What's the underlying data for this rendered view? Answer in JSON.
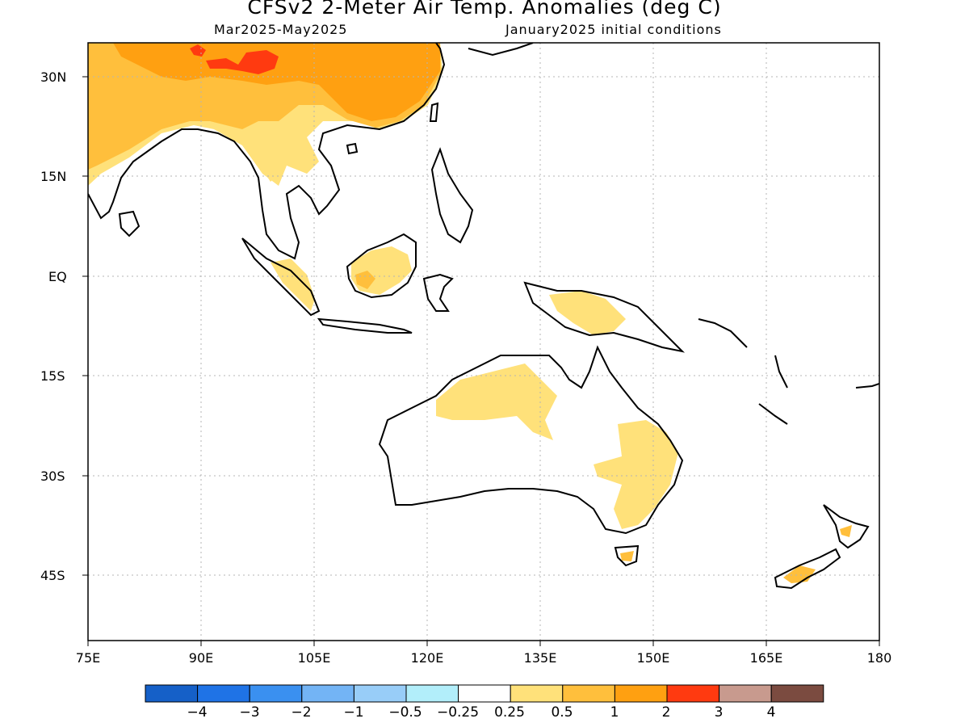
{
  "header": {
    "title": "CFSv2 2-Meter Air Temp. Anomalies (deg C)",
    "period": "Mar2025-May2025",
    "initial_conditions": "January2025 initial conditions"
  },
  "axes": {
    "y_ticks": [
      "30N",
      "15N",
      "EQ",
      "15S",
      "30S",
      "45S"
    ],
    "x_ticks": [
      "75E",
      "90E",
      "105E",
      "120E",
      "135E",
      "150E",
      "165E",
      "180"
    ]
  },
  "colorbar": {
    "colors": [
      "#1560c8",
      "#1f73e6",
      "#3a90f0",
      "#73b4f5",
      "#98cdf8",
      "#b2eefa",
      "#ffffff",
      "#ffe17a",
      "#ffbf3c",
      "#ffa011",
      "#ff3a10",
      "#c89a8e",
      "#7b4b40"
    ],
    "labels": [
      "-4",
      "-3",
      "-2",
      "-1",
      "-0.5",
      "-0.25",
      "0.25",
      "0.5",
      "1",
      "2",
      "3",
      "4"
    ]
  },
  "map_colors": {
    "land_outline": "#000000",
    "grid": "#b4b4b4",
    "anomaly_025_05": "#ffe17a",
    "anomaly_05_1": "#ffbf3c",
    "anomaly_1_2": "#ffa011",
    "anomaly_2_3": "#ff3a10"
  }
}
